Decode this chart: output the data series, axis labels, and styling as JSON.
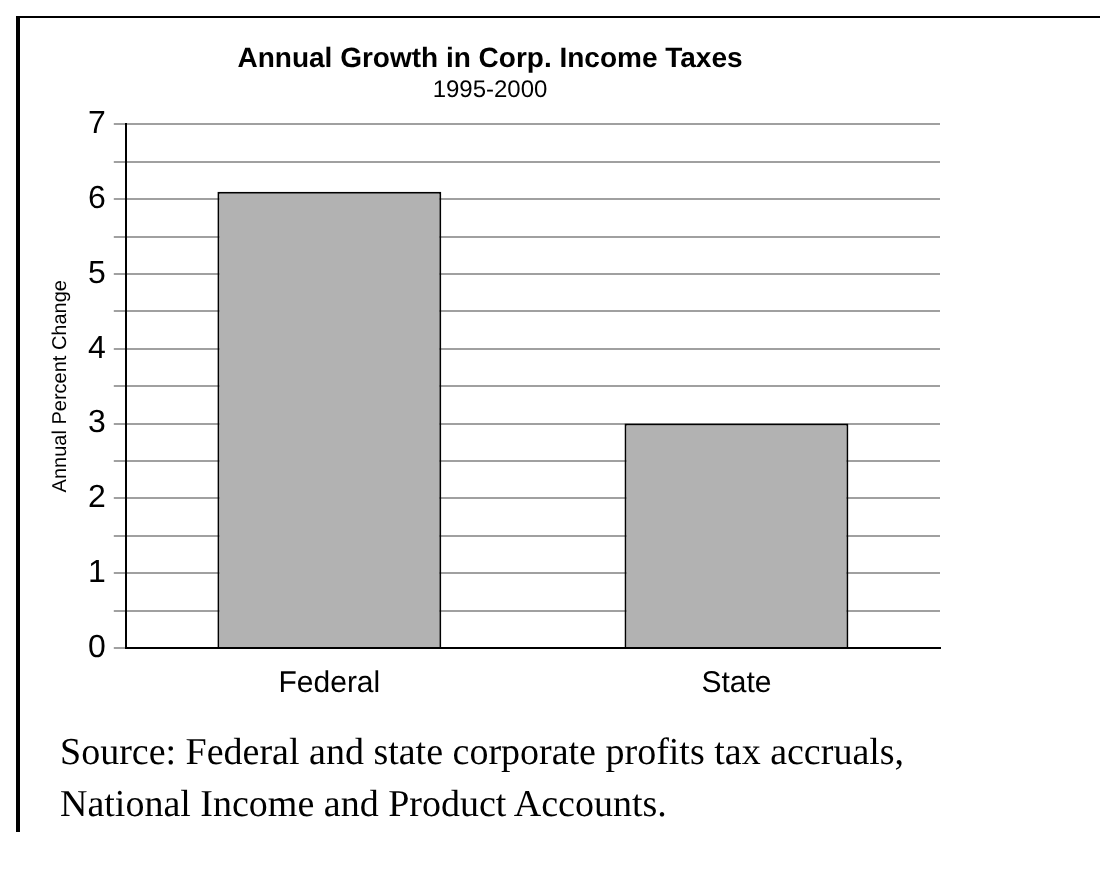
{
  "chart_data": {
    "type": "bar",
    "title": "Annual Growth in Corp. Income Taxes",
    "subtitle": "1995-2000",
    "ylabel": "Annual Percent Change",
    "categories": [
      "Federal",
      "State"
    ],
    "values": [
      6.1,
      3.0
    ],
    "color": "#b2b2b2",
    "ylim": [
      0,
      7
    ],
    "yticks": [
      0,
      {
        "value": 0.5,
        "label": null
      },
      1,
      {
        "value": 1.5,
        "label": null
      },
      2,
      {
        "value": 2.5,
        "label": null
      },
      3,
      {
        "value": 3.5,
        "label": null
      },
      4,
      {
        "value": 4.5,
        "label": null
      },
      5,
      {
        "value": 5.5,
        "label": null
      },
      6,
      {
        "value": 6.5,
        "label": null
      },
      7
    ],
    "grid": "y",
    "legend": false,
    "annotations": [
      "Source:  Federal and state corporate profits tax accruals, National Income and Product Accounts."
    ]
  }
}
